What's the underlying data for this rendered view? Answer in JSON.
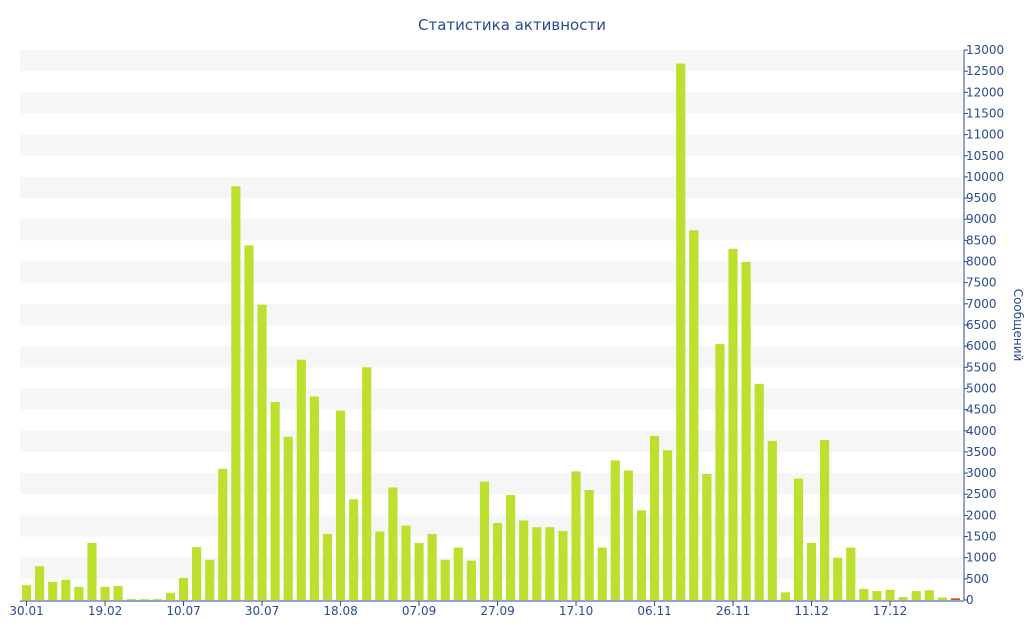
{
  "chart_data": {
    "type": "bar",
    "title": "Статистика активности",
    "xlabel": "",
    "ylabel": "Сообщений",
    "ylim": [
      0,
      13000
    ],
    "y_ticks": [
      0,
      500,
      1000,
      1500,
      2000,
      2500,
      3000,
      3500,
      4000,
      4500,
      5000,
      5500,
      6000,
      6500,
      7000,
      7500,
      8000,
      8500,
      9000,
      9500,
      10000,
      10500,
      11000,
      11500,
      12000,
      12500,
      13000
    ],
    "x_tick_labels": [
      {
        "label": "30.01",
        "index": 0
      },
      {
        "label": "19.02",
        "index": 6
      },
      {
        "label": "10.07",
        "index": 12
      },
      {
        "label": "30.07",
        "index": 18
      },
      {
        "label": "18.08",
        "index": 24
      },
      {
        "label": "07.09",
        "index": 30
      },
      {
        "label": "27.09",
        "index": 36
      },
      {
        "label": "17.10",
        "index": 42
      },
      {
        "label": "06.11",
        "index": 48
      },
      {
        "label": "26.11",
        "index": 54
      },
      {
        "label": "11.12",
        "index": 60
      },
      {
        "label": "17.12",
        "index": 66
      }
    ],
    "values": [
      350,
      800,
      430,
      480,
      310,
      1350,
      310,
      330,
      20,
      20,
      20,
      170,
      520,
      1250,
      950,
      3100,
      9780,
      8380,
      6980,
      4680,
      3860,
      5680,
      4810,
      1560,
      4480,
      2380,
      5500,
      1620,
      2660,
      1760,
      1350,
      1560,
      950,
      1240,
      930,
      2800,
      1820,
      2480,
      1880,
      1720,
      1720,
      1630,
      3040,
      2600,
      1240,
      3300,
      3060,
      2120,
      3880,
      3540,
      12680,
      8740,
      2980,
      6050,
      8300,
      7990,
      5110,
      3760,
      180,
      2870,
      1350,
      3780,
      1000,
      1240,
      260,
      210,
      240,
      70,
      210,
      230,
      60,
      40
    ],
    "bar_color": "#bde02f",
    "last_bar_color": "#e04a2f",
    "grid": "horizontal bands",
    "y_axis_position": "right"
  }
}
